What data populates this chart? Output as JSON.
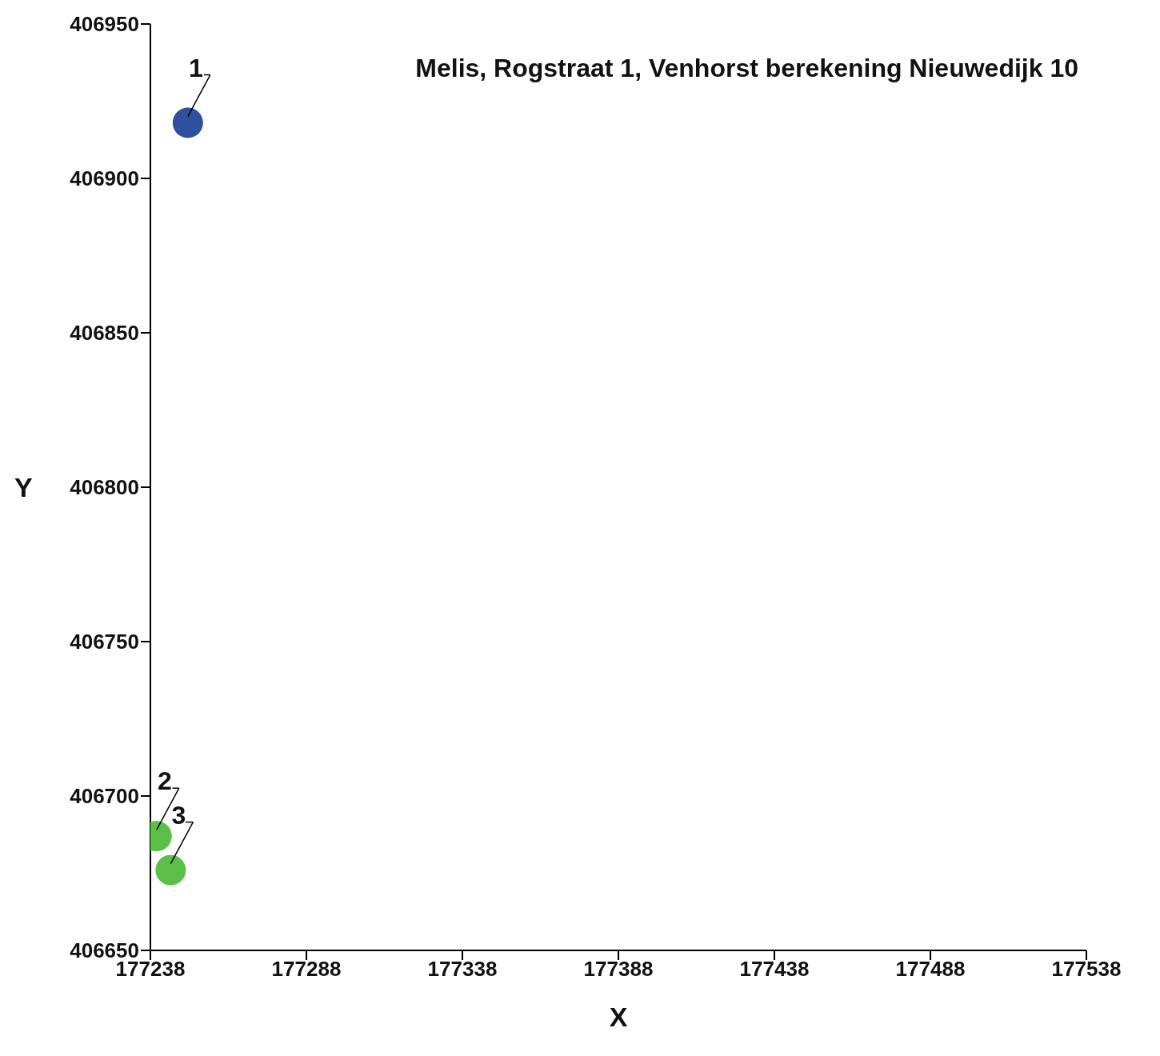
{
  "chart_data": {
    "type": "scatter",
    "title": "Melis, Rogstraat 1, Venhorst berekening Nieuwedijk 10",
    "xlabel": "X",
    "ylabel": "Y",
    "series": [
      {
        "color": "#2f4f9f",
        "x": [
          177250
        ],
        "values": [
          406918
        ]
      },
      {
        "color": "#5cbf4a",
        "x": [
          177240,
          177244.5
        ],
        "values": [
          406687,
          406676
        ]
      }
    ],
    "xlim": [
      177238,
      177538
    ],
    "xticks": [
      177238,
      177288,
      177338,
      177388,
      177438,
      177488,
      177538
    ],
    "ylim": [
      406650,
      406950
    ],
    "yticks": [
      406650,
      406700,
      406750,
      406800,
      406850,
      406900,
      406950
    ],
    "annotations": [
      {
        "text": "1",
        "x": 177250,
        "y": 406918
      },
      {
        "text": "2",
        "x": 177240,
        "y": 406687
      },
      {
        "text": "3",
        "x": 177244.5,
        "y": 406676
      }
    ],
    "grid": false,
    "legend": false,
    "marker": "circle"
  }
}
